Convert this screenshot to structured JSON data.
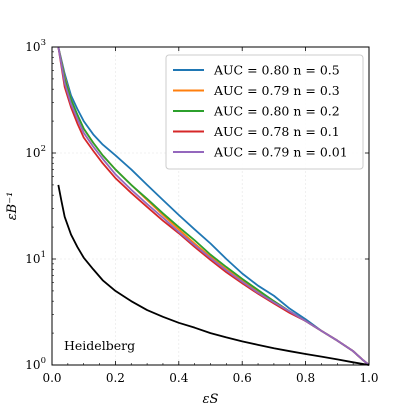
{
  "chart_data": {
    "type": "line",
    "xlabel": "εS",
    "ylabel": "εB⁻¹",
    "xlim": [
      0.0,
      1.0
    ],
    "ylim": [
      1,
      1000
    ],
    "yscale": "log",
    "grid": true,
    "legend_position": "top-right",
    "x_ticks": [
      {
        "value": 0.0,
        "label": "0.0"
      },
      {
        "value": 0.2,
        "label": "0.2"
      },
      {
        "value": 0.4,
        "label": "0.4"
      },
      {
        "value": 0.6,
        "label": "0.6"
      },
      {
        "value": 0.8,
        "label": "0.8"
      },
      {
        "value": 1.0,
        "label": "1.0"
      }
    ],
    "y_ticks": [
      {
        "value": 1,
        "base": "10",
        "exp": "0"
      },
      {
        "value": 10,
        "base": "10",
        "exp": "1"
      },
      {
        "value": 100,
        "base": "10",
        "exp": "2"
      },
      {
        "value": 1000,
        "base": "10",
        "exp": "3"
      }
    ],
    "annotation": "Heidelberg",
    "series": [
      {
        "name": "AUC = 0.80 n = 0.5",
        "legend": {
          "auc": "AUC = 0.80",
          "n": "n = 0.5"
        },
        "color": "#1f77b4",
        "x": [
          0.02,
          0.04,
          0.06,
          0.08,
          0.1,
          0.13,
          0.16,
          0.2,
          0.25,
          0.3,
          0.35,
          0.4,
          0.45,
          0.5,
          0.55,
          0.6,
          0.65,
          0.7,
          0.75,
          0.8,
          0.85,
          0.9,
          0.95,
          0.98,
          1.0
        ],
        "y": [
          1000,
          560,
          350,
          260,
          200,
          150,
          120,
          95,
          70,
          50,
          36,
          26,
          19,
          14,
          10,
          7.3,
          5.6,
          4.5,
          3.4,
          2.7,
          2.1,
          1.7,
          1.35,
          1.12,
          1.0
        ]
      },
      {
        "name": "AUC = 0.79 n = 0.3",
        "legend": {
          "auc": "AUC = 0.79",
          "n": "n = 0.3"
        },
        "color": "#ff7f0e",
        "x": [
          0.02,
          0.04,
          0.06,
          0.08,
          0.1,
          0.13,
          0.16,
          0.2,
          0.25,
          0.3,
          0.35,
          0.4,
          0.45,
          0.5,
          0.55,
          0.6,
          0.65,
          0.7,
          0.75,
          0.8,
          0.85,
          0.9,
          0.95,
          0.98,
          1.0
        ],
        "y": [
          1000,
          520,
          320,
          230,
          170,
          125,
          95,
          70,
          50,
          36,
          26,
          19,
          14,
          10.5,
          8.0,
          6.3,
          5.0,
          4.0,
          3.2,
          2.6,
          2.1,
          1.7,
          1.35,
          1.12,
          1.0
        ]
      },
      {
        "name": "AUC = 0.80 n = 0.2",
        "legend": {
          "auc": "AUC = 0.80",
          "n": "n = 0.2"
        },
        "color": "#2ca02c",
        "x": [
          0.02,
          0.04,
          0.06,
          0.08,
          0.1,
          0.13,
          0.16,
          0.2,
          0.25,
          0.3,
          0.35,
          0.4,
          0.45,
          0.5,
          0.55,
          0.6,
          0.65,
          0.7,
          0.75,
          0.8,
          0.85,
          0.9,
          0.95,
          0.98,
          1.0
        ],
        "y": [
          1000,
          500,
          320,
          230,
          170,
          125,
          95,
          70,
          50,
          37,
          27,
          20,
          15,
          11,
          8.4,
          6.5,
          5.1,
          4.0,
          3.2,
          2.6,
          2.1,
          1.7,
          1.35,
          1.12,
          1.0
        ]
      },
      {
        "name": "AUC = 0.78 n = 0.1",
        "legend": {
          "auc": "AUC = 0.78",
          "n": "n = 0.1"
        },
        "color": "#d62728",
        "x": [
          0.02,
          0.04,
          0.06,
          0.08,
          0.1,
          0.13,
          0.16,
          0.2,
          0.25,
          0.3,
          0.35,
          0.4,
          0.45,
          0.5,
          0.55,
          0.6,
          0.65,
          0.7,
          0.75,
          0.8,
          0.85,
          0.9,
          0.95,
          0.98,
          1.0
        ],
        "y": [
          1000,
          420,
          270,
          190,
          140,
          105,
          80,
          58,
          42,
          31,
          23,
          17.5,
          13,
          9.8,
          7.5,
          5.9,
          4.7,
          3.8,
          3.1,
          2.6,
          2.1,
          1.7,
          1.35,
          1.12,
          1.0
        ]
      },
      {
        "name": "AUC = 0.79 n = 0.01",
        "legend": {
          "auc": "AUC = 0.79",
          "n": "n = 0.01"
        },
        "color": "#9467bd",
        "x": [
          0.02,
          0.04,
          0.06,
          0.08,
          0.1,
          0.13,
          0.16,
          0.2,
          0.25,
          0.3,
          0.35,
          0.4,
          0.45,
          0.5,
          0.55,
          0.6,
          0.65,
          0.7,
          0.75,
          0.8,
          0.85,
          0.9,
          0.95,
          0.98,
          1.0
        ],
        "y": [
          1000,
          460,
          290,
          210,
          155,
          115,
          88,
          63,
          45,
          33,
          24.5,
          18,
          13.5,
          10.2,
          7.8,
          6.1,
          4.8,
          3.9,
          3.2,
          2.6,
          2.1,
          1.7,
          1.35,
          1.12,
          1.0
        ]
      },
      {
        "name": "",
        "color": "#000000",
        "x": [
          0.02,
          0.03,
          0.04,
          0.06,
          0.08,
          0.1,
          0.13,
          0.16,
          0.2,
          0.25,
          0.3,
          0.35,
          0.4,
          0.45,
          0.5,
          0.55,
          0.6,
          0.65,
          0.7,
          0.75,
          0.8,
          0.85,
          0.9,
          0.95,
          1.0
        ],
        "y": [
          50,
          35,
          25,
          17,
          13,
          10.3,
          8.0,
          6.3,
          5.0,
          4.0,
          3.3,
          2.85,
          2.5,
          2.25,
          2.0,
          1.82,
          1.67,
          1.55,
          1.44,
          1.35,
          1.27,
          1.2,
          1.13,
          1.06,
          1.0
        ]
      }
    ]
  }
}
